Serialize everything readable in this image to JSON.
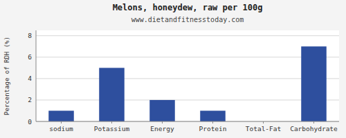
{
  "chart_data": {
    "type": "bar",
    "title": "Melons, honeydew, raw per 100g",
    "subtitle": "www.dietandfitnesstoday.com",
    "ylabel": "Percentage of RDH (%)",
    "categories": [
      "sodium",
      "Potassium",
      "Energy",
      "Protein",
      "Total-Fat",
      "Carbohydrate"
    ],
    "values": [
      1.0,
      5.0,
      2.0,
      1.0,
      0.0,
      7.0
    ],
    "color": "#2e4f9e",
    "ylim": [
      0,
      8.5
    ],
    "yticks": [
      0,
      2,
      4,
      6,
      8
    ],
    "grid": true
  }
}
